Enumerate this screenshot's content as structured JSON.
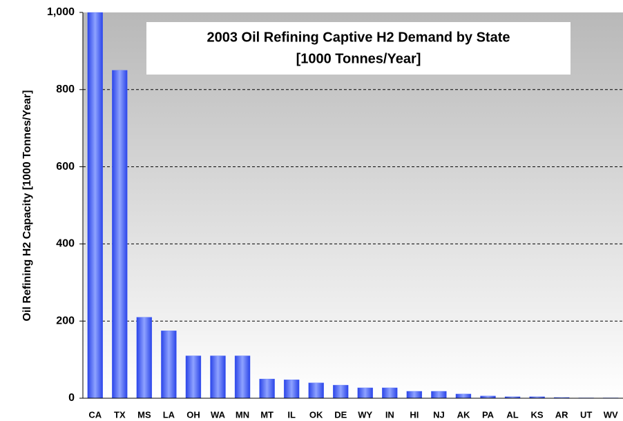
{
  "chart_data": {
    "type": "bar",
    "title": "2003 Oil Refining Captive H2 Demand by State",
    "subtitle": "[1000 Tonnes/Year]",
    "y_label": "Oil Refining H2 Capacity [1000 Tonnes/Year]",
    "categories": [
      "CA",
      "TX",
      "MS",
      "LA",
      "OH",
      "WA",
      "MN",
      "MT",
      "IL",
      "OK",
      "DE",
      "WY",
      "IN",
      "HI",
      "NJ",
      "AK",
      "PA",
      "AL",
      "KS",
      "AR",
      "UT",
      "WV"
    ],
    "values": [
      1000,
      850,
      210,
      175,
      110,
      110,
      110,
      50,
      48,
      40,
      34,
      27,
      27,
      18,
      18,
      11,
      6,
      4,
      4,
      2,
      1,
      1
    ],
    "color": "#4d6bff",
    "ylim": [
      0,
      1000
    ],
    "yticks": [
      0,
      200,
      400,
      600,
      800,
      {
        "value": 1000,
        "label": "1,000"
      }
    ],
    "grid": true
  }
}
